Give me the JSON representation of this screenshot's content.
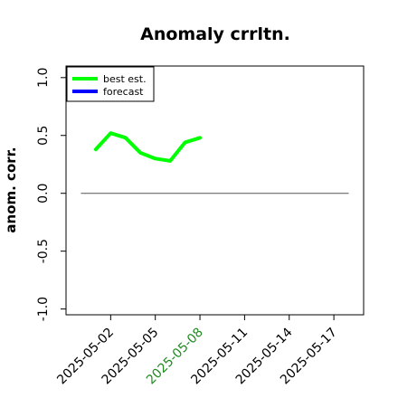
{
  "chart_data": {
    "type": "line",
    "title": "Anomaly crrltn.",
    "ylabel": "anom. corr.",
    "xlabel": "",
    "ylim": [
      -1.05,
      1.1
    ],
    "xlim": [
      "2025-04-29",
      "2025-05-19"
    ],
    "yticks": [
      {
        "value": -1.0,
        "label": "-1.0"
      },
      {
        "value": -0.5,
        "label": "-0.5"
      },
      {
        "value": 0.0,
        "label": "0.0"
      },
      {
        "value": 0.5,
        "label": "0.5"
      },
      {
        "value": 1.0,
        "label": "1.0"
      }
    ],
    "xticks": [
      {
        "date": "2025-05-02",
        "label": "2025-05-02",
        "highlight": false
      },
      {
        "date": "2025-05-05",
        "label": "2025-05-05",
        "highlight": false
      },
      {
        "date": "2025-05-08",
        "label": "2025-05-08",
        "highlight": true
      },
      {
        "date": "2025-05-11",
        "label": "2025-05-11",
        "highlight": false
      },
      {
        "date": "2025-05-14",
        "label": "2025-05-14",
        "highlight": false
      },
      {
        "date": "2025-05-17",
        "label": "2025-05-17",
        "highlight": false
      }
    ],
    "reference_line": {
      "y": 0.0,
      "from": "2025-04-30",
      "to": "2025-05-18",
      "color": "#555555"
    },
    "series": [
      {
        "name": "best est.",
        "color": "#00ff00",
        "x": [
          "2025-05-01",
          "2025-05-02",
          "2025-05-03",
          "2025-05-04",
          "2025-05-05",
          "2025-05-06",
          "2025-05-07",
          "2025-05-08"
        ],
        "y": [
          0.38,
          0.52,
          0.48,
          0.35,
          0.3,
          0.28,
          0.44,
          0.48
        ]
      },
      {
        "name": "forecast",
        "color": "#0000ff",
        "x": [],
        "y": []
      }
    ],
    "legend": {
      "position": "top-left"
    },
    "grid": false,
    "highlight_tick_color": "#228b22"
  }
}
